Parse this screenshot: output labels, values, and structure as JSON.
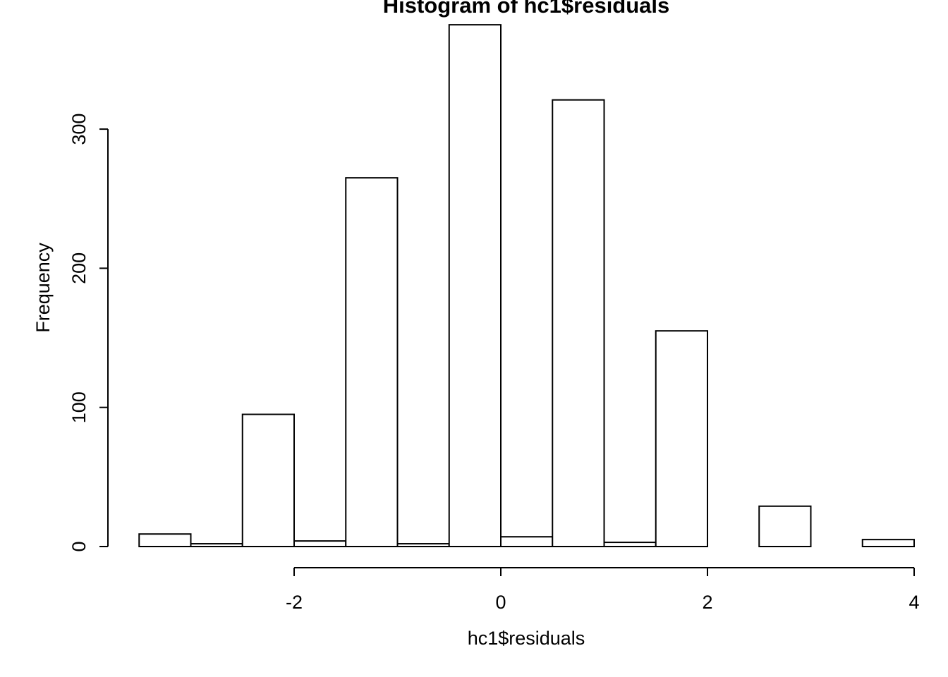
{
  "chart_data": {
    "type": "bar",
    "title": "Histogram of hc1$residuals",
    "xlabel": "hc1$residuals",
    "ylabel": "Frequency",
    "bins": [
      {
        "x0": -3.5,
        "x1": -3.0,
        "count": 9
      },
      {
        "x0": -3.0,
        "x1": -2.5,
        "count": 2
      },
      {
        "x0": -2.5,
        "x1": -2.0,
        "count": 95
      },
      {
        "x0": -2.0,
        "x1": -1.5,
        "count": 4
      },
      {
        "x0": -1.5,
        "x1": -1.0,
        "count": 265
      },
      {
        "x0": -1.0,
        "x1": -0.5,
        "count": 2
      },
      {
        "x0": -0.5,
        "x1": 0.0,
        "count": 375
      },
      {
        "x0": 0.0,
        "x1": 0.5,
        "count": 7
      },
      {
        "x0": 0.5,
        "x1": 1.0,
        "count": 321
      },
      {
        "x0": 1.0,
        "x1": 1.5,
        "count": 3
      },
      {
        "x0": 1.5,
        "x1": 2.0,
        "count": 155
      },
      {
        "x0": 2.0,
        "x1": 2.5,
        "count": 0
      },
      {
        "x0": 2.5,
        "x1": 3.0,
        "count": 29
      },
      {
        "x0": 3.0,
        "x1": 3.5,
        "count": 0
      },
      {
        "x0": 3.5,
        "x1": 4.0,
        "count": 5
      }
    ],
    "x_ticks": [
      -2,
      0,
      2,
      4
    ],
    "x_tick_labels": [
      "-2",
      "0",
      "2",
      "4"
    ],
    "y_ticks": [
      0,
      100,
      200,
      300
    ],
    "y_tick_labels": [
      "0",
      "100",
      "200",
      "300"
    ],
    "xlim": [
      -3.5,
      4.0
    ],
    "ylim": [
      0,
      375
    ],
    "grid": false,
    "colors": {
      "bar_fill": "#ffffff",
      "bar_stroke": "#000000"
    }
  }
}
